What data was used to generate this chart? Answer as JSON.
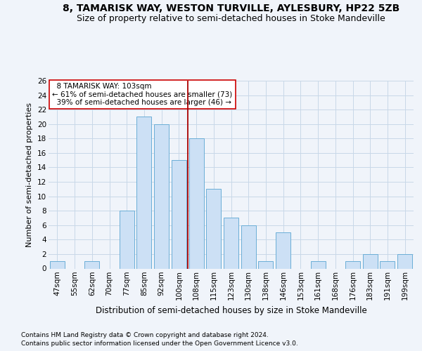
{
  "title1": "8, TAMARISK WAY, WESTON TURVILLE, AYLESBURY, HP22 5ZB",
  "title2": "Size of property relative to semi-detached houses in Stoke Mandeville",
  "xlabel": "Distribution of semi-detached houses by size in Stoke Mandeville",
  "ylabel": "Number of semi-detached properties",
  "footer1": "Contains HM Land Registry data © Crown copyright and database right 2024.",
  "footer2": "Contains public sector information licensed under the Open Government Licence v3.0.",
  "categories": [
    "47sqm",
    "55sqm",
    "62sqm",
    "70sqm",
    "77sqm",
    "85sqm",
    "92sqm",
    "100sqm",
    "108sqm",
    "115sqm",
    "123sqm",
    "130sqm",
    "138sqm",
    "146sqm",
    "153sqm",
    "161sqm",
    "168sqm",
    "176sqm",
    "183sqm",
    "191sqm",
    "199sqm"
  ],
  "values": [
    1,
    0,
    1,
    0,
    8,
    21,
    20,
    15,
    18,
    11,
    7,
    6,
    1,
    5,
    0,
    1,
    0,
    1,
    2,
    1,
    2
  ],
  "bar_color": "#cce0f5",
  "bar_edge_color": "#6baed6",
  "red_line_after_index": 7,
  "highlight_line_color": "#aa0000",
  "pct_smaller": "61%",
  "pct_smaller_n": "73",
  "pct_larger": "39%",
  "pct_larger_n": "46",
  "ylim": [
    0,
    26
  ],
  "yticks": [
    0,
    2,
    4,
    6,
    8,
    10,
    12,
    14,
    16,
    18,
    20,
    22,
    24,
    26
  ],
  "bg_color": "#f0f4fa",
  "grid_color": "#c8d8e8",
  "title1_fontsize": 10,
  "title2_fontsize": 9,
  "tick_fontsize": 7.5,
  "xlabel_fontsize": 8.5,
  "ylabel_fontsize": 8,
  "footer_fontsize": 6.5,
  "annotation_fontsize": 7.5
}
